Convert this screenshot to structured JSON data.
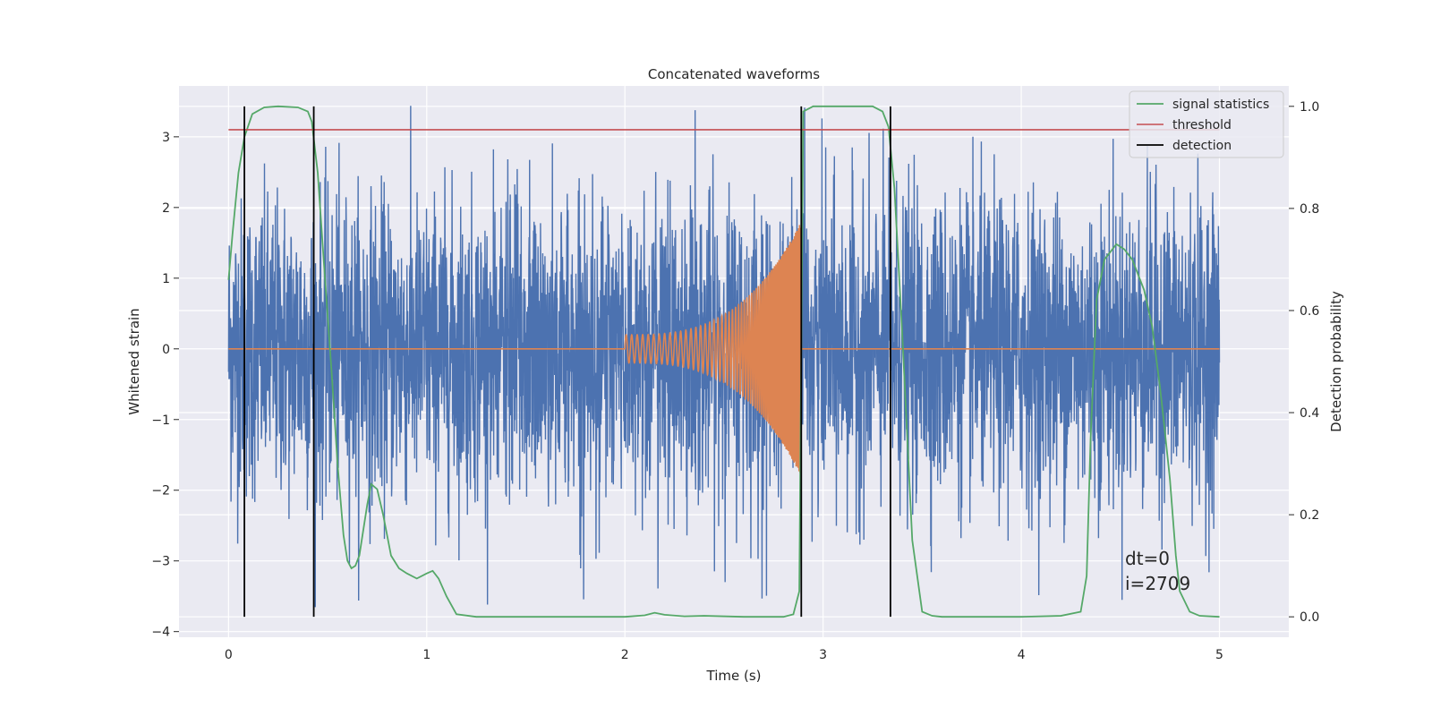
{
  "chart_data": {
    "type": "line",
    "title": "Concatenated waveforms",
    "xlabel": "Time (s)",
    "ylabel": "Whitened strain",
    "y2label": "Detection probability",
    "xlim": [
      -0.25,
      5.35
    ],
    "ylim": [
      -4.08,
      3.72
    ],
    "y2lim": [
      -0.04,
      1.04
    ],
    "xticks": [
      "0",
      "1",
      "2",
      "3",
      "4",
      "5"
    ],
    "yticks": [
      "−4",
      "−3",
      "−2",
      "−1",
      "0",
      "1",
      "2",
      "3"
    ],
    "y2ticks": [
      "0.0",
      "0.2",
      "0.4",
      "0.6",
      "0.8",
      "1.0"
    ],
    "grid": true,
    "legend_position": "top-right",
    "colors": {
      "strain": "#4c72b0",
      "template": "#dd8452",
      "statistics": "#55a868",
      "threshold": "#c44e52",
      "detection": "#000000",
      "background": "#eaeaf2",
      "grid": "#ffffff"
    },
    "series": [
      {
        "name": "signal statistics",
        "axis": "right",
        "style": "line"
      },
      {
        "name": "threshold",
        "axis": "left",
        "style": "hline",
        "y": 3.1,
        "x": [
          0,
          5
        ]
      },
      {
        "name": "detection",
        "axis": "left",
        "style": "vlines",
        "x": [
          0.08,
          0.43,
          2.89,
          3.34
        ]
      }
    ],
    "statistics_curve": {
      "x": [
        0.0,
        0.02,
        0.05,
        0.08,
        0.12,
        0.18,
        0.25,
        0.35,
        0.4,
        0.42,
        0.45,
        0.48,
        0.52,
        0.55,
        0.58,
        0.6,
        0.62,
        0.64,
        0.66,
        0.7,
        0.72,
        0.75,
        0.78,
        0.82,
        0.86,
        0.9,
        0.95,
        1.0,
        1.03,
        1.06,
        1.1,
        1.15,
        1.25,
        1.5,
        2.0,
        2.1,
        2.15,
        2.2,
        2.3,
        2.4,
        2.6,
        2.8,
        2.85,
        2.88,
        2.9,
        2.95,
        3.0,
        3.25,
        3.3,
        3.33,
        3.36,
        3.4,
        3.45,
        3.5,
        3.55,
        3.6,
        3.8,
        4.0,
        4.2,
        4.3,
        4.33,
        4.35,
        4.38,
        4.42,
        4.48,
        4.52,
        4.56,
        4.62,
        4.66,
        4.7,
        4.72,
        4.75,
        4.78,
        4.8,
        4.85,
        4.9,
        5.0
      ],
      "y": [
        0.66,
        0.75,
        0.87,
        0.94,
        0.985,
        0.998,
        1.0,
        0.998,
        0.99,
        0.97,
        0.87,
        0.7,
        0.48,
        0.3,
        0.16,
        0.11,
        0.095,
        0.1,
        0.12,
        0.22,
        0.26,
        0.25,
        0.2,
        0.12,
        0.095,
        0.085,
        0.075,
        0.085,
        0.09,
        0.075,
        0.04,
        0.005,
        0.0,
        0.0,
        0.0,
        0.003,
        0.008,
        0.004,
        0.001,
        0.002,
        0.0,
        0.0,
        0.005,
        0.05,
        0.99,
        1.0,
        1.0,
        1.0,
        0.99,
        0.96,
        0.84,
        0.55,
        0.15,
        0.01,
        0.002,
        0.0,
        0.0,
        0.0,
        0.002,
        0.01,
        0.08,
        0.35,
        0.62,
        0.7,
        0.73,
        0.72,
        0.7,
        0.64,
        0.57,
        0.45,
        0.38,
        0.27,
        0.12,
        0.05,
        0.01,
        0.002,
        0.0
      ]
    },
    "strain_noise": {
      "x_range": [
        0,
        5
      ],
      "samples": 4000,
      "approx_peak": 3.45,
      "approx_trough": -3.7
    },
    "chirp": {
      "x_range": [
        2.0,
        2.89
      ],
      "amplitude_start": 0.2,
      "amplitude_end": 1.8
    },
    "annotations": [
      "dt=0",
      "i=2709"
    ]
  }
}
